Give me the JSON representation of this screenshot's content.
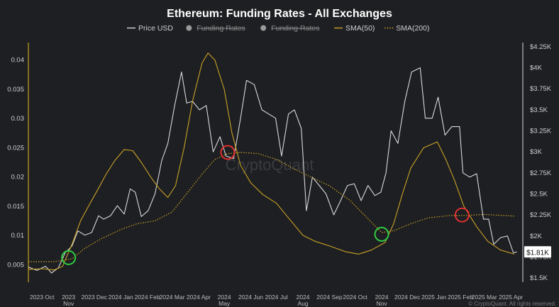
{
  "chart_data": {
    "type": "line",
    "title": "Ethereum: Funding Rates - All Exchanges",
    "legend": [
      {
        "name": "Price USD",
        "color": "#d9d9d9",
        "style": "line",
        "hidden": false
      },
      {
        "name": "Funding Rates",
        "color": "#9a9a9a",
        "style": "circle",
        "hidden": true
      },
      {
        "name": "Funding Rates",
        "color": "#9a9a9a",
        "style": "circle",
        "hidden": true
      },
      {
        "name": "SMA(50)",
        "color": "#c9a227",
        "style": "line",
        "hidden": false
      },
      {
        "name": "SMA(200)",
        "color": "#c9a227",
        "style": "dotted",
        "hidden": false
      }
    ],
    "legend_placement": "top-center",
    "x_range": [
      "2023-09-15",
      "2025-04-15"
    ],
    "x_ticks": [
      {
        "date": "2023-10-01",
        "label": "2023 Oct",
        "label2": ""
      },
      {
        "date": "2023-11-01",
        "label": "2023",
        "label2": "Nov"
      },
      {
        "date": "2023-12-01",
        "label": "2023 Dec",
        "label2": ""
      },
      {
        "date": "2024-01-01",
        "label": "2024 Jan",
        "label2": ""
      },
      {
        "date": "2024-02-01",
        "label": "2024 Feb",
        "label2": ""
      },
      {
        "date": "2024-03-01",
        "label": "2024 Mar",
        "label2": ""
      },
      {
        "date": "2024-04-01",
        "label": "2024 Apr",
        "label2": ""
      },
      {
        "date": "2024-05-01",
        "label": "2024",
        "label2": "May"
      },
      {
        "date": "2024-06-01",
        "label": "2024 Jun",
        "label2": ""
      },
      {
        "date": "2024-07-01",
        "label": "2024 Jul",
        "label2": ""
      },
      {
        "date": "2024-08-01",
        "label": "2024",
        "label2": "Aug"
      },
      {
        "date": "2024-09-01",
        "label": "2024 Sep",
        "label2": ""
      },
      {
        "date": "2024-10-01",
        "label": "2024 Oct",
        "label2": ""
      },
      {
        "date": "2024-11-01",
        "label": "2024",
        "label2": "Nov"
      },
      {
        "date": "2024-12-01",
        "label": "2024 Dec",
        "label2": ""
      },
      {
        "date": "2025-01-01",
        "label": "2025 Jan",
        "label2": ""
      },
      {
        "date": "2025-02-01",
        "label": "2025 Feb",
        "label2": ""
      },
      {
        "date": "2025-03-01",
        "label": "2025 Mar",
        "label2": ""
      },
      {
        "date": "2025-04-01",
        "label": "2025 Apr",
        "label2": ""
      }
    ],
    "y_left": {
      "range": [
        0.002,
        0.043
      ],
      "ticks": [
        0.005,
        0.01,
        0.015,
        0.02,
        0.025,
        0.03,
        0.035,
        0.04
      ],
      "tick_labels": [
        "0.005",
        "0.01",
        "0.015",
        "0.02",
        "0.025",
        "0.03",
        "0.035",
        "0.04"
      ]
    },
    "y_right": {
      "range": [
        1450,
        4300
      ],
      "ticks": [
        1500,
        1750,
        2000,
        2250,
        2500,
        2750,
        3000,
        3250,
        3500,
        3750,
        4000,
        4250
      ],
      "tick_labels": [
        "$1.5K",
        "$1.75K",
        "$2K",
        "$2.25K",
        "$2.5K",
        "$2.75K",
        "$3K",
        "$3.25K",
        "$3.5K",
        "$3.75K",
        "$4K",
        "$4.25K"
      ]
    },
    "current_price_label": "$1.81K",
    "current_price": 1810,
    "grid": false,
    "series": [
      {
        "name": "Price USD",
        "axis": "right",
        "color": "#d9d9d9",
        "points": [
          [
            "2023-09-15",
            1630
          ],
          [
            "2023-09-25",
            1590
          ],
          [
            "2023-10-05",
            1640
          ],
          [
            "2023-10-12",
            1560
          ],
          [
            "2023-10-20",
            1620
          ],
          [
            "2023-10-28",
            1800
          ],
          [
            "2023-11-05",
            1880
          ],
          [
            "2023-11-12",
            2060
          ],
          [
            "2023-11-20",
            2010
          ],
          [
            "2023-11-28",
            2040
          ],
          [
            "2023-12-06",
            2240
          ],
          [
            "2023-12-12",
            2200
          ],
          [
            "2023-12-20",
            2240
          ],
          [
            "2023-12-28",
            2360
          ],
          [
            "2024-01-05",
            2260
          ],
          [
            "2024-01-12",
            2560
          ],
          [
            "2024-01-18",
            2520
          ],
          [
            "2024-01-25",
            2230
          ],
          [
            "2024-02-02",
            2300
          ],
          [
            "2024-02-10",
            2500
          ],
          [
            "2024-02-18",
            2900
          ],
          [
            "2024-02-25",
            3100
          ],
          [
            "2024-03-04",
            3550
          ],
          [
            "2024-03-12",
            3950
          ],
          [
            "2024-03-18",
            3580
          ],
          [
            "2024-03-25",
            3600
          ],
          [
            "2024-04-02",
            3500
          ],
          [
            "2024-04-10",
            3550
          ],
          [
            "2024-04-18",
            3000
          ],
          [
            "2024-04-26",
            3180
          ],
          [
            "2024-05-03",
            2950
          ],
          [
            "2024-05-12",
            2920
          ],
          [
            "2024-05-20",
            3400
          ],
          [
            "2024-05-27",
            3850
          ],
          [
            "2024-06-05",
            3800
          ],
          [
            "2024-06-14",
            3500
          ],
          [
            "2024-06-22",
            3450
          ],
          [
            "2024-06-30",
            3400
          ],
          [
            "2024-07-07",
            2950
          ],
          [
            "2024-07-15",
            3450
          ],
          [
            "2024-07-22",
            3500
          ],
          [
            "2024-07-30",
            3280
          ],
          [
            "2024-08-05",
            2300
          ],
          [
            "2024-08-12",
            2700
          ],
          [
            "2024-08-20",
            2600
          ],
          [
            "2024-08-28",
            2500
          ],
          [
            "2024-09-06",
            2250
          ],
          [
            "2024-09-14",
            2420
          ],
          [
            "2024-09-22",
            2600
          ],
          [
            "2024-09-30",
            2620
          ],
          [
            "2024-10-08",
            2420
          ],
          [
            "2024-10-16",
            2600
          ],
          [
            "2024-10-24",
            2480
          ],
          [
            "2024-10-31",
            2520
          ],
          [
            "2024-11-06",
            2750
          ],
          [
            "2024-11-12",
            3250
          ],
          [
            "2024-11-20",
            3100
          ],
          [
            "2024-11-28",
            3600
          ],
          [
            "2024-12-06",
            3950
          ],
          [
            "2024-12-16",
            4000
          ],
          [
            "2024-12-22",
            3400
          ],
          [
            "2024-12-30",
            3400
          ],
          [
            "2025-01-06",
            3650
          ],
          [
            "2025-01-14",
            3200
          ],
          [
            "2025-01-22",
            3300
          ],
          [
            "2025-01-31",
            3300
          ],
          [
            "2025-02-04",
            2750
          ],
          [
            "2025-02-12",
            2700
          ],
          [
            "2025-02-20",
            2740
          ],
          [
            "2025-02-28",
            2200
          ],
          [
            "2025-03-06",
            2200
          ],
          [
            "2025-03-12",
            1900
          ],
          [
            "2025-03-20",
            1980
          ],
          [
            "2025-03-28",
            2000
          ],
          [
            "2025-04-04",
            1800
          ],
          [
            "2025-04-08",
            1810
          ]
        ]
      },
      {
        "name": "SMA(50)",
        "axis": "left",
        "color": "#c9a227",
        "points": [
          [
            "2023-09-15",
            0.0042
          ],
          [
            "2023-10-01",
            0.0043
          ],
          [
            "2023-10-15",
            0.0041
          ],
          [
            "2023-10-25",
            0.0047
          ],
          [
            "2023-11-05",
            0.0085
          ],
          [
            "2023-11-15",
            0.0125
          ],
          [
            "2023-11-25",
            0.0152
          ],
          [
            "2023-12-05",
            0.0178
          ],
          [
            "2023-12-15",
            0.0205
          ],
          [
            "2023-12-25",
            0.0228
          ],
          [
            "2024-01-05",
            0.0247
          ],
          [
            "2024-01-15",
            0.0245
          ],
          [
            "2024-01-25",
            0.0225
          ],
          [
            "2024-02-05",
            0.02
          ],
          [
            "2024-02-15",
            0.018
          ],
          [
            "2024-02-25",
            0.0165
          ],
          [
            "2024-03-05",
            0.0185
          ],
          [
            "2024-03-15",
            0.025
          ],
          [
            "2024-03-25",
            0.033
          ],
          [
            "2024-04-05",
            0.0395
          ],
          [
            "2024-04-12",
            0.0412
          ],
          [
            "2024-04-20",
            0.04
          ],
          [
            "2024-05-01",
            0.035
          ],
          [
            "2024-05-10",
            0.0275
          ],
          [
            "2024-05-20",
            0.022
          ],
          [
            "2024-06-01",
            0.019
          ],
          [
            "2024-06-15",
            0.017
          ],
          [
            "2024-07-01",
            0.0155
          ],
          [
            "2024-07-15",
            0.013
          ],
          [
            "2024-08-01",
            0.01
          ],
          [
            "2024-08-15",
            0.009
          ],
          [
            "2024-09-01",
            0.0082
          ],
          [
            "2024-09-20",
            0.0072
          ],
          [
            "2024-10-05",
            0.0068
          ],
          [
            "2024-10-20",
            0.0075
          ],
          [
            "2024-11-05",
            0.0088
          ],
          [
            "2024-11-15",
            0.012
          ],
          [
            "2024-11-25",
            0.017
          ],
          [
            "2024-12-05",
            0.0215
          ],
          [
            "2024-12-20",
            0.025
          ],
          [
            "2025-01-05",
            0.026
          ],
          [
            "2025-01-15",
            0.023
          ],
          [
            "2025-01-25",
            0.0195
          ],
          [
            "2025-02-05",
            0.015
          ],
          [
            "2025-02-20",
            0.0115
          ],
          [
            "2025-03-05",
            0.009
          ],
          [
            "2025-03-20",
            0.0075
          ],
          [
            "2025-04-05",
            0.0068
          ]
        ]
      },
      {
        "name": "SMA(200)",
        "axis": "left",
        "color": "#c9a227",
        "points": [
          [
            "2023-09-15",
            0.0055
          ],
          [
            "2023-10-15",
            0.0055
          ],
          [
            "2023-11-05",
            0.006
          ],
          [
            "2023-11-20",
            0.0078
          ],
          [
            "2023-12-10",
            0.0095
          ],
          [
            "2024-01-01",
            0.011
          ],
          [
            "2024-01-20",
            0.012
          ],
          [
            "2024-02-10",
            0.0125
          ],
          [
            "2024-03-01",
            0.014
          ],
          [
            "2024-03-20",
            0.0175
          ],
          [
            "2024-04-05",
            0.0205
          ],
          [
            "2024-04-20",
            0.023
          ],
          [
            "2024-05-05",
            0.024
          ],
          [
            "2024-05-20",
            0.0242
          ],
          [
            "2024-06-10",
            0.024
          ],
          [
            "2024-07-01",
            0.023
          ],
          [
            "2024-07-20",
            0.0215
          ],
          [
            "2024-08-10",
            0.02
          ],
          [
            "2024-09-01",
            0.0185
          ],
          [
            "2024-09-25",
            0.016
          ],
          [
            "2024-10-15",
            0.013
          ],
          [
            "2024-11-01",
            0.0105
          ],
          [
            "2024-11-15",
            0.0108
          ],
          [
            "2024-12-05",
            0.012
          ],
          [
            "2024-12-25",
            0.013
          ],
          [
            "2025-01-20",
            0.0134
          ],
          [
            "2025-02-05",
            0.0134
          ],
          [
            "2025-03-01",
            0.0136
          ],
          [
            "2025-04-05",
            0.0133
          ]
        ]
      }
    ],
    "annotations": [
      {
        "type": "circle",
        "date": "2023-11-01",
        "value": 0.0062,
        "color": "#2ecc40",
        "meaning": "cross"
      },
      {
        "type": "circle",
        "date": "2024-05-05",
        "value": 0.0242,
        "color": "#e03131",
        "meaning": "cross"
      },
      {
        "type": "circle",
        "date": "2024-11-01",
        "value": 0.0102,
        "color": "#2ecc40",
        "meaning": "cross"
      },
      {
        "type": "circle",
        "date": "2025-02-03",
        "value": 0.0135,
        "color": "#e03131",
        "meaning": "cross"
      }
    ],
    "watermark": "CryptoQuant",
    "credit": "© CryptoQuant. All rights reserved."
  }
}
